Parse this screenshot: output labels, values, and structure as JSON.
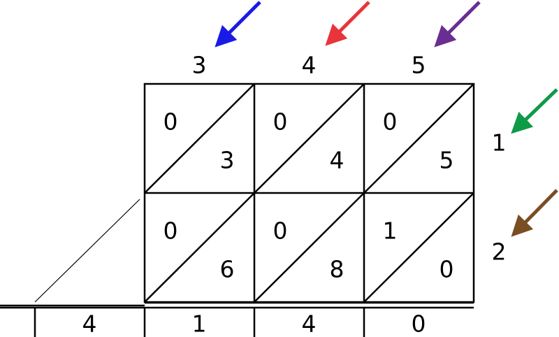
{
  "multiplicand": [
    3,
    4,
    5
  ],
  "multiplier": [
    1,
    2
  ],
  "cells": [
    [
      [
        0,
        3
      ],
      [
        0,
        4
      ],
      [
        0,
        5
      ]
    ],
    [
      [
        0,
        6
      ],
      [
        0,
        8
      ],
      [
        1,
        0
      ]
    ]
  ],
  "result": [
    {
      "digit": 4,
      "color": "#e8343a"
    },
    {
      "digit": 1,
      "color": "#6a2d91"
    },
    {
      "digit": 4,
      "color": "#0f9a48"
    },
    {
      "digit": 0,
      "color": "#7a4e23"
    }
  ]
}
